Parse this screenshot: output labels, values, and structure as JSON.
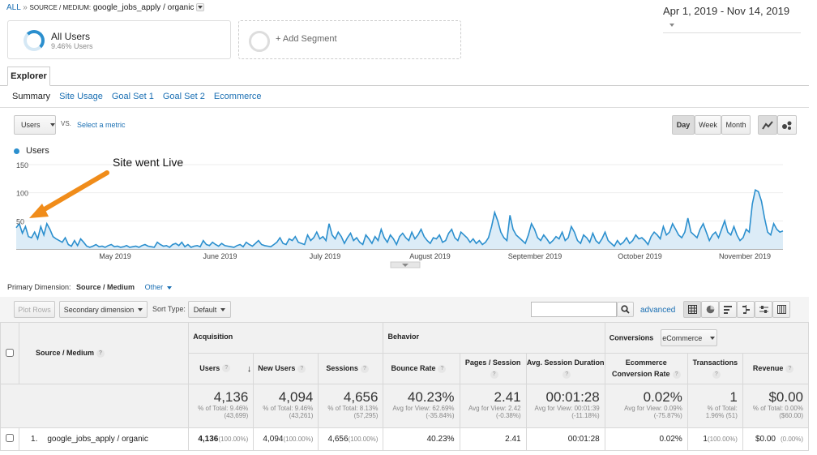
{
  "breadcrumb": {
    "all": "ALL",
    "sep": "»",
    "dimension": "SOURCE / MEDIUM:",
    "value": "google_jobs_apply / organic"
  },
  "date_range": "Apr 1, 2019 - Nov 14, 2019",
  "segments": {
    "all_users": "All Users",
    "all_users_pct": "9.46% Users",
    "add_segment": "+ Add Segment"
  },
  "explorer_tab": "Explorer",
  "subtabs": [
    "Summary",
    "Site Usage",
    "Goal Set 1",
    "Goal Set 2",
    "Ecommerce"
  ],
  "metric": {
    "select": "Users",
    "vs": "VS.",
    "select_metric": "Select a metric"
  },
  "granularity": [
    "Day",
    "Week",
    "Month"
  ],
  "chart_data": {
    "type": "area",
    "legend": "Users",
    "annotation": "Site went Live",
    "y_ticks": [
      "150",
      "100",
      "50"
    ],
    "ylim": [
      0,
      150
    ],
    "x_labels": [
      "May 2019",
      "June 2019",
      "July 2019",
      "August 2019",
      "September 2019",
      "October 2019",
      "November 2019"
    ],
    "color": "#2b8fce",
    "values": [
      38,
      45,
      28,
      40,
      22,
      20,
      30,
      18,
      40,
      25,
      45,
      35,
      22,
      18,
      15,
      12,
      20,
      8,
      5,
      15,
      6,
      18,
      12,
      5,
      3,
      5,
      8,
      4,
      5,
      3,
      6,
      8,
      4,
      5,
      3,
      4,
      6,
      3,
      4,
      5,
      3,
      6,
      8,
      5,
      4,
      3,
      12,
      8,
      5,
      6,
      3,
      8,
      10,
      6,
      12,
      4,
      8,
      3,
      5,
      6,
      4,
      15,
      8,
      6,
      12,
      8,
      5,
      10,
      6,
      5,
      4,
      3,
      6,
      8,
      4,
      12,
      8,
      5,
      10,
      15,
      8,
      6,
      5,
      4,
      8,
      12,
      20,
      10,
      8,
      18,
      15,
      22,
      12,
      10,
      8,
      25,
      15,
      20,
      30,
      18,
      22,
      15,
      45,
      25,
      18,
      30,
      22,
      10,
      20,
      28,
      15,
      20,
      12,
      8,
      25,
      18,
      10,
      22,
      15,
      35,
      20,
      12,
      25,
      18,
      8,
      22,
      28,
      20,
      15,
      30,
      18,
      25,
      35,
      22,
      15,
      10,
      20,
      18,
      25,
      12,
      15,
      28,
      35,
      20,
      15,
      30,
      25,
      20,
      12,
      18,
      10,
      15,
      8,
      12,
      20,
      40,
      65,
      50,
      30,
      20,
      15,
      60,
      35,
      25,
      20,
      15,
      10,
      25,
      45,
      35,
      20,
      15,
      25,
      18,
      10,
      15,
      22,
      18,
      30,
      15,
      20,
      40,
      30,
      15,
      10,
      25,
      20,
      12,
      28,
      15,
      10,
      18,
      30,
      15,
      10,
      5,
      15,
      8,
      12,
      20,
      10,
      15,
      25,
      18,
      20,
      15,
      8,
      22,
      30,
      25,
      18,
      40,
      25,
      30,
      45,
      35,
      25,
      20,
      30,
      55,
      30,
      25,
      20,
      35,
      45,
      30,
      15,
      25,
      30,
      20,
      35,
      50,
      30,
      25,
      40,
      25,
      15,
      20,
      35,
      30,
      80,
      105,
      102,
      85,
      55,
      30,
      25,
      45,
      35,
      30,
      32
    ]
  },
  "primary_dimension": {
    "label": "Primary Dimension:",
    "value": "Source / Medium",
    "other": "Other"
  },
  "toolbar": {
    "plot_rows": "Plot Rows",
    "secondary": "Secondary dimension",
    "sort_type": "Sort Type:",
    "sort_value": "Default",
    "advanced": "advanced"
  },
  "table": {
    "source_medium": "Source / Medium",
    "acquisition": "Acquisition",
    "behavior": "Behavior",
    "conversions": "Conversions",
    "conv_select": "eCommerce",
    "cols": {
      "users": "Users",
      "new_users": "New Users",
      "sessions": "Sessions",
      "bounce": "Bounce Rate",
      "pages": "Pages / Session",
      "duration": "Avg. Session Duration",
      "ecr": "Ecommerce Conversion Rate",
      "transactions": "Transactions",
      "revenue": "Revenue"
    },
    "totals": {
      "users": "4,136",
      "users_s": "% of Total: 9.46% (43,699)",
      "new_users": "4,094",
      "new_users_s": "% of Total: 9.46% (43,261)",
      "sessions": "4,656",
      "sessions_s": "% of Total: 8.13% (57,295)",
      "bounce": "40.23%",
      "bounce_s": "Avg for View: 62.69% (-35.84%)",
      "pages": "2.41",
      "pages_s": "Avg for View: 2.42 (-0.38%)",
      "duration": "00:01:28",
      "duration_s": "Avg for View: 00:01:39 (-11.18%)",
      "ecr": "0.02%",
      "ecr_s": "Avg for View: 0.09% (-75.87%)",
      "transactions": "1",
      "transactions_s": "% of Total: 1.96% (51)",
      "revenue": "$0.00",
      "revenue_s": "% of Total: 0.00% ($60.00)"
    },
    "row": {
      "index": "1.",
      "name": "google_jobs_apply / organic",
      "users": "4,136",
      "users_p": "(100.00%)",
      "new_users": "4,094",
      "new_users_p": "(100.00%)",
      "sessions": "4,656",
      "sessions_p": "(100.00%)",
      "bounce": "40.23%",
      "pages": "2.41",
      "duration": "00:01:28",
      "ecr": "0.02%",
      "transactions": "1",
      "transactions_p": "(100.00%)",
      "revenue": "$0.00",
      "revenue_p": "(0.00%)"
    }
  }
}
